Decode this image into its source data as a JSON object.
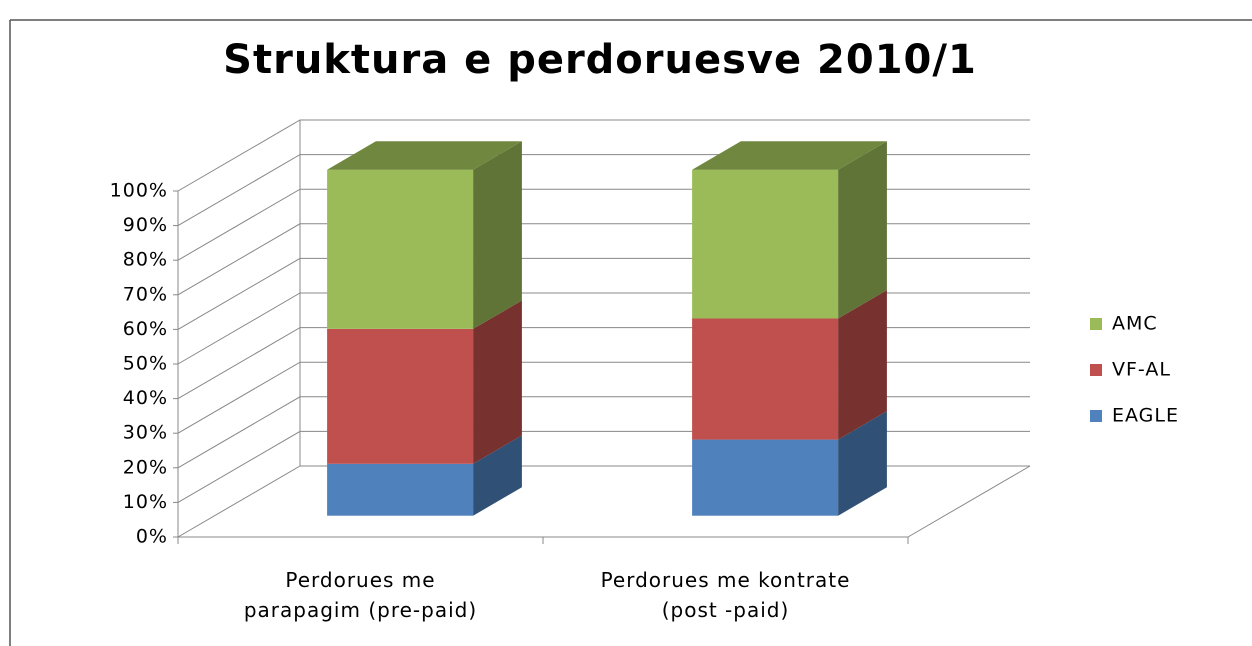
{
  "chart_data": {
    "type": "bar3d_stacked",
    "title": "Struktura e perdoruesve 2010/1",
    "categories": [
      "Perdorues me\nparapagim (pre-paid)",
      "Perdorues me kontrate\n(post -paid)"
    ],
    "series": [
      {
        "name": "EAGLE",
        "color": "#4f81bd",
        "values": [
          15,
          22
        ]
      },
      {
        "name": "VF-AL",
        "color": "#c0504d",
        "values": [
          39,
          35
        ]
      },
      {
        "name": "AMC",
        "color": "#9bbb59",
        "values": [
          46,
          43
        ]
      }
    ],
    "ylim": [
      0,
      100
    ],
    "yticks": [
      {
        "value": 0,
        "label": "0%"
      },
      {
        "value": 10,
        "label": "10%"
      },
      {
        "value": 20,
        "label": "20%"
      },
      {
        "value": 30,
        "label": "30%"
      },
      {
        "value": 40,
        "label": "40%"
      },
      {
        "value": 50,
        "label": "50%"
      },
      {
        "value": 60,
        "label": "60%"
      },
      {
        "value": 70,
        "label": "70%"
      },
      {
        "value": 80,
        "label": "80%"
      },
      {
        "value": 90,
        "label": "90%"
      },
      {
        "value": 100,
        "label": "100%"
      }
    ],
    "grid": true,
    "legend": "right"
  }
}
